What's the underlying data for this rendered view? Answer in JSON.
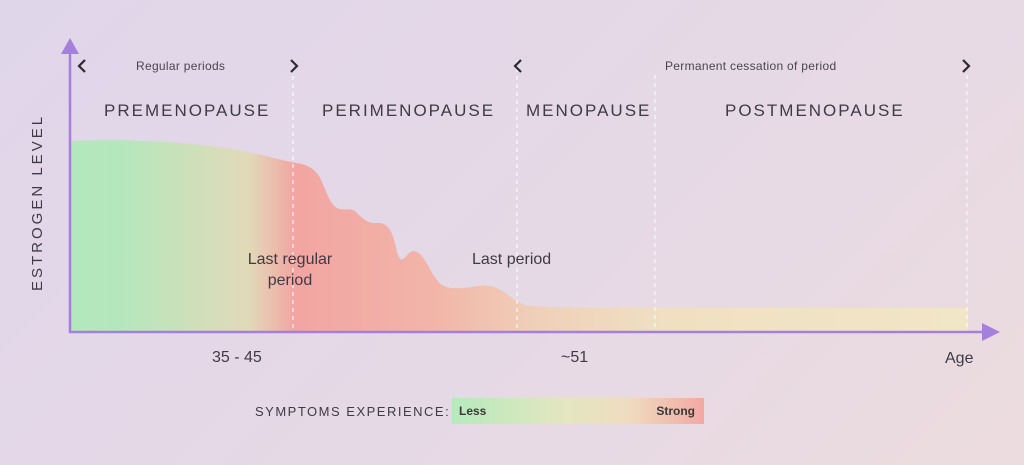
{
  "y_axis_label": "ESTROGEN LEVEL",
  "x_axis_end_label": "Age",
  "brackets": [
    {
      "text": "Regular periods"
    },
    {
      "text": "Permanent cessation of period"
    }
  ],
  "phases": [
    "PREMENOPAUSE",
    "PERIMENOPAUSE",
    "MENOPAUSE",
    "POSTMENOPAUSE"
  ],
  "events": {
    "last_regular_period": "Last regular\nperiod",
    "last_period": "Last period"
  },
  "age_ticks": [
    "35 - 45",
    "~51"
  ],
  "legend": {
    "title": "SYMPTOMS EXPERIENCE:",
    "low": "Less",
    "high": "Strong"
  },
  "colors": {
    "axis": "#a57fdc",
    "less": "#b2e8bc",
    "neutral": "#efe3c4",
    "strong": "#f2a5a2"
  },
  "icons": [
    "chevron-left-icon",
    "chevron-right-icon"
  ]
}
